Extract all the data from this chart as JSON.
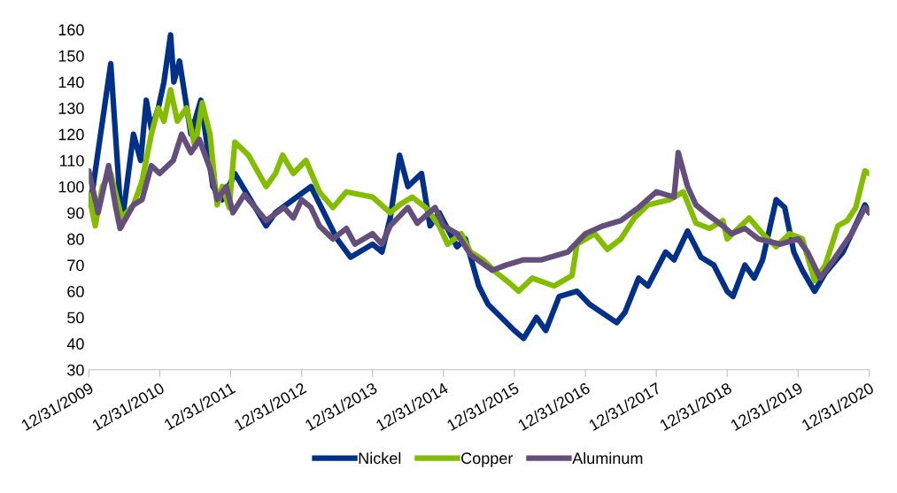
{
  "chart_data": {
    "type": "line",
    "legend": "bottom",
    "grid": false,
    "line_style": "solid",
    "marker": "none",
    "xlim": [
      "2009-12-31",
      "2020-12-31"
    ],
    "xticks": [
      {
        "value": "2009-12-31",
        "label": "12/31/2009"
      },
      {
        "value": "2010-12-31",
        "label": "12/31/2010"
      },
      {
        "value": "2011-12-31",
        "label": "12/31/2011"
      },
      {
        "value": "2012-12-31",
        "label": "12/31/2012"
      },
      {
        "value": "2013-12-31",
        "label": "12/31/2013"
      },
      {
        "value": "2014-12-31",
        "label": "12/31/2014"
      },
      {
        "value": "2015-12-31",
        "label": "12/31/2015"
      },
      {
        "value": "2016-12-31",
        "label": "12/31/2016"
      },
      {
        "value": "2017-12-31",
        "label": "12/31/2017"
      },
      {
        "value": "2018-12-31",
        "label": "12/31/2018"
      },
      {
        "value": "2019-12-31",
        "label": "12/31/2019"
      },
      {
        "value": "2020-12-31",
        "label": "12/31/2020"
      }
    ],
    "ylim": [
      30,
      160
    ],
    "yticks": [
      30,
      40,
      50,
      60,
      70,
      80,
      90,
      100,
      110,
      120,
      130,
      140,
      150,
      160
    ],
    "series": [
      {
        "name": "Nickel",
        "color": "#003087",
        "x": [
          "2009-12-31",
          "2010-01-22",
          "2010-04-23",
          "2010-06-18",
          "2010-08-18",
          "2010-09-24",
          "2010-10-23",
          "2010-11-18",
          "2010-12-24",
          "2011-01-22",
          "2011-02-25",
          "2011-03-14",
          "2011-04-12",
          "2011-06-10",
          "2011-07-31",
          "2011-10-01",
          "2011-11-18",
          "2012-01-22",
          "2012-07-01",
          "2012-08-18",
          "2013-02-17",
          "2013-07-01",
          "2013-09-09",
          "2013-12-31",
          "2014-02-17",
          "2014-04-01",
          "2014-05-19",
          "2014-07-01",
          "2014-09-09",
          "2014-10-23",
          "2014-12-09",
          "2015-03-11",
          "2015-04-23",
          "2015-07-01",
          "2015-08-18",
          "2015-12-31",
          "2016-02-17",
          "2016-04-23",
          "2016-06-10",
          "2016-08-18",
          "2016-11-18",
          "2017-01-22",
          "2017-06-10",
          "2017-07-23",
          "2017-10-01",
          "2017-11-18",
          "2018-02-17",
          "2018-04-01",
          "2018-06-10",
          "2018-08-18",
          "2018-10-23",
          "2018-12-31",
          "2019-01-30",
          "2019-04-01",
          "2019-05-19",
          "2019-07-01",
          "2019-09-09",
          "2019-10-23",
          "2019-12-09",
          "2020-01-22",
          "2020-03-25",
          "2020-05-19",
          "2020-08-18",
          "2020-10-01",
          "2020-12-09",
          "2020-12-31"
        ],
        "values": [
          93,
          100,
          147,
          85,
          120,
          110,
          133,
          122,
          130,
          140,
          158,
          140,
          148,
          120,
          133,
          100,
          95,
          105,
          85,
          90,
          100,
          80,
          73,
          78,
          75,
          88,
          112,
          100,
          105,
          85,
          90,
          77,
          80,
          62,
          55,
          45,
          42,
          50,
          45,
          58,
          60,
          55,
          48,
          52,
          65,
          62,
          75,
          72,
          83,
          73,
          70,
          60,
          58,
          70,
          65,
          72,
          95,
          92,
          75,
          68,
          60,
          67,
          75,
          82,
          93,
          90
        ]
      },
      {
        "name": "Copper",
        "color": "#84bd00",
        "x": [
          "2009-12-31",
          "2010-02-02",
          "2010-03-11",
          "2010-04-23",
          "2010-06-18",
          "2010-08-18",
          "2010-10-01",
          "2010-11-18",
          "2010-12-24",
          "2011-01-22",
          "2011-02-25",
          "2011-04-01",
          "2011-05-19",
          "2011-07-01",
          "2011-08-07",
          "2011-09-16",
          "2011-10-23",
          "2011-11-18",
          "2011-12-24",
          "2012-01-22",
          "2012-04-01",
          "2012-07-01",
          "2012-08-18",
          "2012-09-24",
          "2012-11-18",
          "2013-01-22",
          "2013-04-01",
          "2013-06-10",
          "2013-08-18",
          "2013-12-31",
          "2014-04-01",
          "2014-05-19",
          "2014-07-23",
          "2014-10-01",
          "2014-12-09",
          "2015-01-22",
          "2015-04-01",
          "2015-05-19",
          "2015-07-23",
          "2015-10-01",
          "2015-12-09",
          "2016-01-22",
          "2016-04-01",
          "2016-07-23",
          "2016-10-23",
          "2016-11-18",
          "2017-02-17",
          "2017-04-23",
          "2017-07-01",
          "2017-09-09",
          "2017-11-18",
          "2018-03-11",
          "2018-05-19",
          "2018-07-23",
          "2018-10-01",
          "2018-12-09",
          "2018-12-31",
          "2019-03-11",
          "2019-04-23",
          "2019-07-01",
          "2019-09-09",
          "2019-11-18",
          "2020-01-22",
          "2020-03-25",
          "2020-05-19",
          "2020-07-23",
          "2020-09-09",
          "2020-10-23",
          "2020-12-09",
          "2020-12-31"
        ],
        "values": [
          97,
          85,
          100,
          105,
          88,
          93,
          102,
          120,
          130,
          125,
          137,
          125,
          130,
          115,
          132,
          120,
          93,
          100,
          92,
          117,
          112,
          100,
          105,
          112,
          105,
          110,
          98,
          92,
          98,
          96,
          90,
          93,
          96,
          92,
          85,
          78,
          82,
          75,
          72,
          67,
          63,
          60,
          65,
          62,
          66,
          78,
          82,
          76,
          80,
          88,
          93,
          95,
          98,
          86,
          84,
          87,
          80,
          85,
          88,
          82,
          77,
          82,
          80,
          64,
          70,
          85,
          87,
          92,
          106,
          105
        ]
      },
      {
        "name": "Aluminum",
        "color": "#634e7c",
        "x": [
          "2009-12-31",
          "2010-02-17",
          "2010-04-12",
          "2010-05-19",
          "2010-06-10",
          "2010-08-18",
          "2010-10-01",
          "2010-11-18",
          "2010-12-31",
          "2011-03-11",
          "2011-04-23",
          "2011-06-10",
          "2011-07-23",
          "2011-09-16",
          "2011-10-23",
          "2011-12-09",
          "2012-01-12",
          "2012-03-11",
          "2012-07-01",
          "2012-10-01",
          "2012-11-18",
          "2012-12-31",
          "2013-02-17",
          "2013-04-01",
          "2013-06-10",
          "2013-08-18",
          "2013-10-01",
          "2013-12-31",
          "2014-02-17",
          "2014-04-01",
          "2014-07-01",
          "2014-08-18",
          "2014-11-18",
          "2014-12-31",
          "2015-03-11",
          "2015-05-19",
          "2015-09-09",
          "2015-11-18",
          "2016-02-17",
          "2016-05-19",
          "2016-10-01",
          "2016-12-31",
          "2017-04-01",
          "2017-07-01",
          "2017-10-01",
          "2017-12-31",
          "2018-04-01",
          "2018-04-23",
          "2018-06-10",
          "2018-07-23",
          "2018-09-09",
          "2018-12-09",
          "2019-01-22",
          "2019-04-01",
          "2019-06-10",
          "2019-10-01",
          "2019-12-31",
          "2020-02-17",
          "2020-04-23",
          "2020-07-01",
          "2020-10-01",
          "2020-12-09",
          "2020-12-31"
        ],
        "values": [
          106,
          90,
          108,
          92,
          84,
          93,
          95,
          108,
          105,
          110,
          120,
          113,
          118,
          107,
          95,
          100,
          90,
          97,
          87,
          92,
          88,
          95,
          92,
          85,
          80,
          84,
          78,
          82,
          78,
          85,
          92,
          86,
          92,
          85,
          82,
          74,
          68,
          70,
          72,
          72,
          75,
          82,
          85,
          87,
          92,
          98,
          96,
          113,
          100,
          93,
          90,
          85,
          82,
          84,
          80,
          78,
          80,
          75,
          65,
          72,
          82,
          92,
          90
        ]
      }
    ]
  }
}
